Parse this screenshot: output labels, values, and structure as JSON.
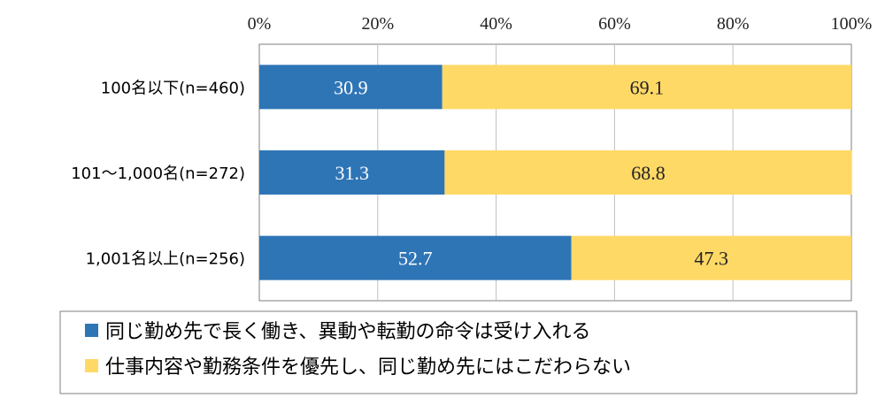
{
  "colors": {
    "series1": "#2E75B6",
    "series2": "#FFD966",
    "grid": "#BFBFBF",
    "frame": "#7F7F7F"
  },
  "chart_data": {
    "type": "bar",
    "orientation": "horizontal",
    "stacked": true,
    "percent": true,
    "xlim": [
      0,
      100
    ],
    "x_ticks": [
      "0%",
      "20%",
      "40%",
      "60%",
      "80%",
      "100%"
    ],
    "x_tick_values": [
      0,
      20,
      40,
      60,
      80,
      100
    ],
    "grid": true,
    "legend_position": "bottom",
    "categories": [
      "100名以下(n=460)",
      "101～1,000名(n=272)",
      "1,001名以上(n=256)"
    ],
    "series": [
      {
        "name": "同じ勤め先で長く働き、異動や転勤の命令は受け入れる",
        "values": [
          30.9,
          31.3,
          52.7
        ],
        "labels": [
          "30.9",
          "31.3",
          "52.7"
        ]
      },
      {
        "name": "仕事内容や勤務条件を優先し、同じ勤め先にはこだわらない",
        "values": [
          69.1,
          68.8,
          47.3
        ],
        "labels": [
          "69.1",
          "68.8",
          "47.3"
        ]
      }
    ]
  }
}
